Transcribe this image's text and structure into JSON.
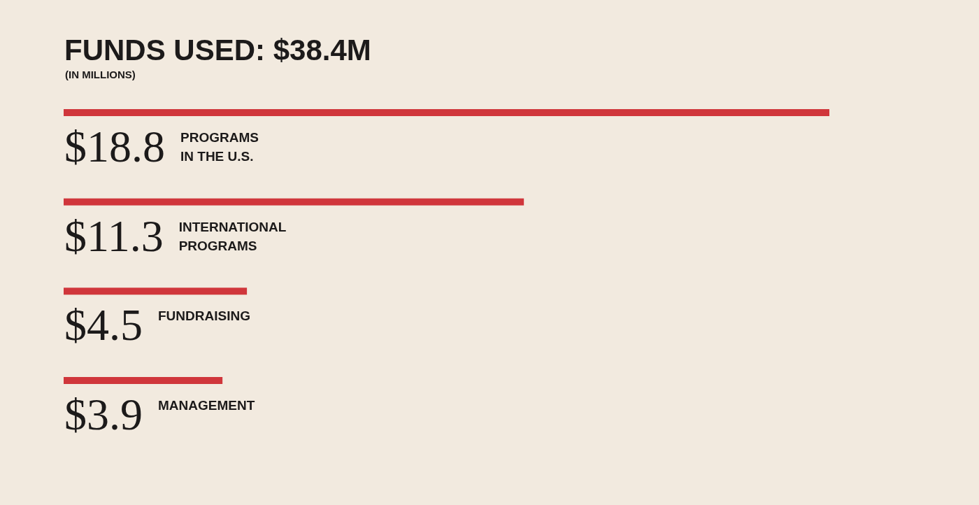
{
  "chart_data": {
    "type": "bar",
    "orientation": "horizontal",
    "title": "FUNDS USED: $38.4M",
    "subtitle": "(IN MILLIONS)",
    "categories": [
      "PROGRAMS IN THE U.S.",
      "INTERNATIONAL PROGRAMS",
      "FUNDRAISING",
      "MANAGEMENT"
    ],
    "values": [
      18.8,
      11.3,
      4.5,
      3.9
    ],
    "value_labels": [
      "$18.8",
      "$11.3",
      "$4.5",
      "$3.9"
    ],
    "color": "#d0363b"
  }
}
